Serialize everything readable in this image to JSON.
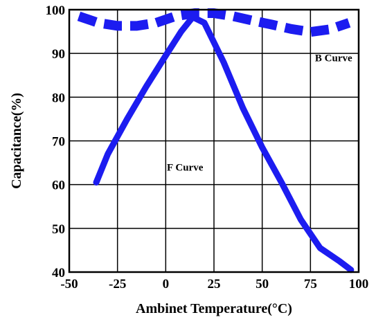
{
  "chart_data": {
    "type": "line",
    "title": "",
    "xlabel": "Ambinet Temperature(°C)",
    "ylabel": "Capacitance(%)",
    "xlim": [
      -50,
      100
    ],
    "ylim": [
      40,
      100
    ],
    "xticks": [
      -50,
      -25,
      0,
      25,
      50,
      75,
      100
    ],
    "yticks": [
      40,
      50,
      60,
      70,
      80,
      90,
      100
    ],
    "grid": true,
    "legend": "none",
    "series": [
      {
        "name": "B Curve",
        "style": "dashed",
        "color": "#1c1cf0",
        "x": [
          -45,
          -35,
          -25,
          -15,
          -5,
          5,
          15,
          25,
          35,
          45,
          55,
          65,
          75,
          85,
          95
        ],
        "y": [
          98.5,
          97,
          96.3,
          96.3,
          97,
          98.5,
          99.2,
          99.2,
          98.5,
          97.5,
          96.6,
          95.6,
          94.9,
          95.5,
          97
        ]
      },
      {
        "name": "F Curve",
        "style": "solid",
        "color": "#1c1cf0",
        "x": [
          -36,
          -30,
          -20,
          -10,
          0,
          8,
          14,
          20,
          30,
          40,
          50,
          60,
          70,
          80,
          90,
          96
        ],
        "y": [
          60.5,
          67,
          75,
          82.5,
          89.5,
          95,
          98.3,
          97,
          88,
          77.5,
          68.5,
          60.5,
          52,
          45.5,
          42.5,
          40.5
        ]
      }
    ],
    "annotations": [
      {
        "text": "B Curve",
        "x": 87,
        "y": 89
      },
      {
        "text": "F Curve",
        "x": 10,
        "y": 64
      }
    ]
  }
}
